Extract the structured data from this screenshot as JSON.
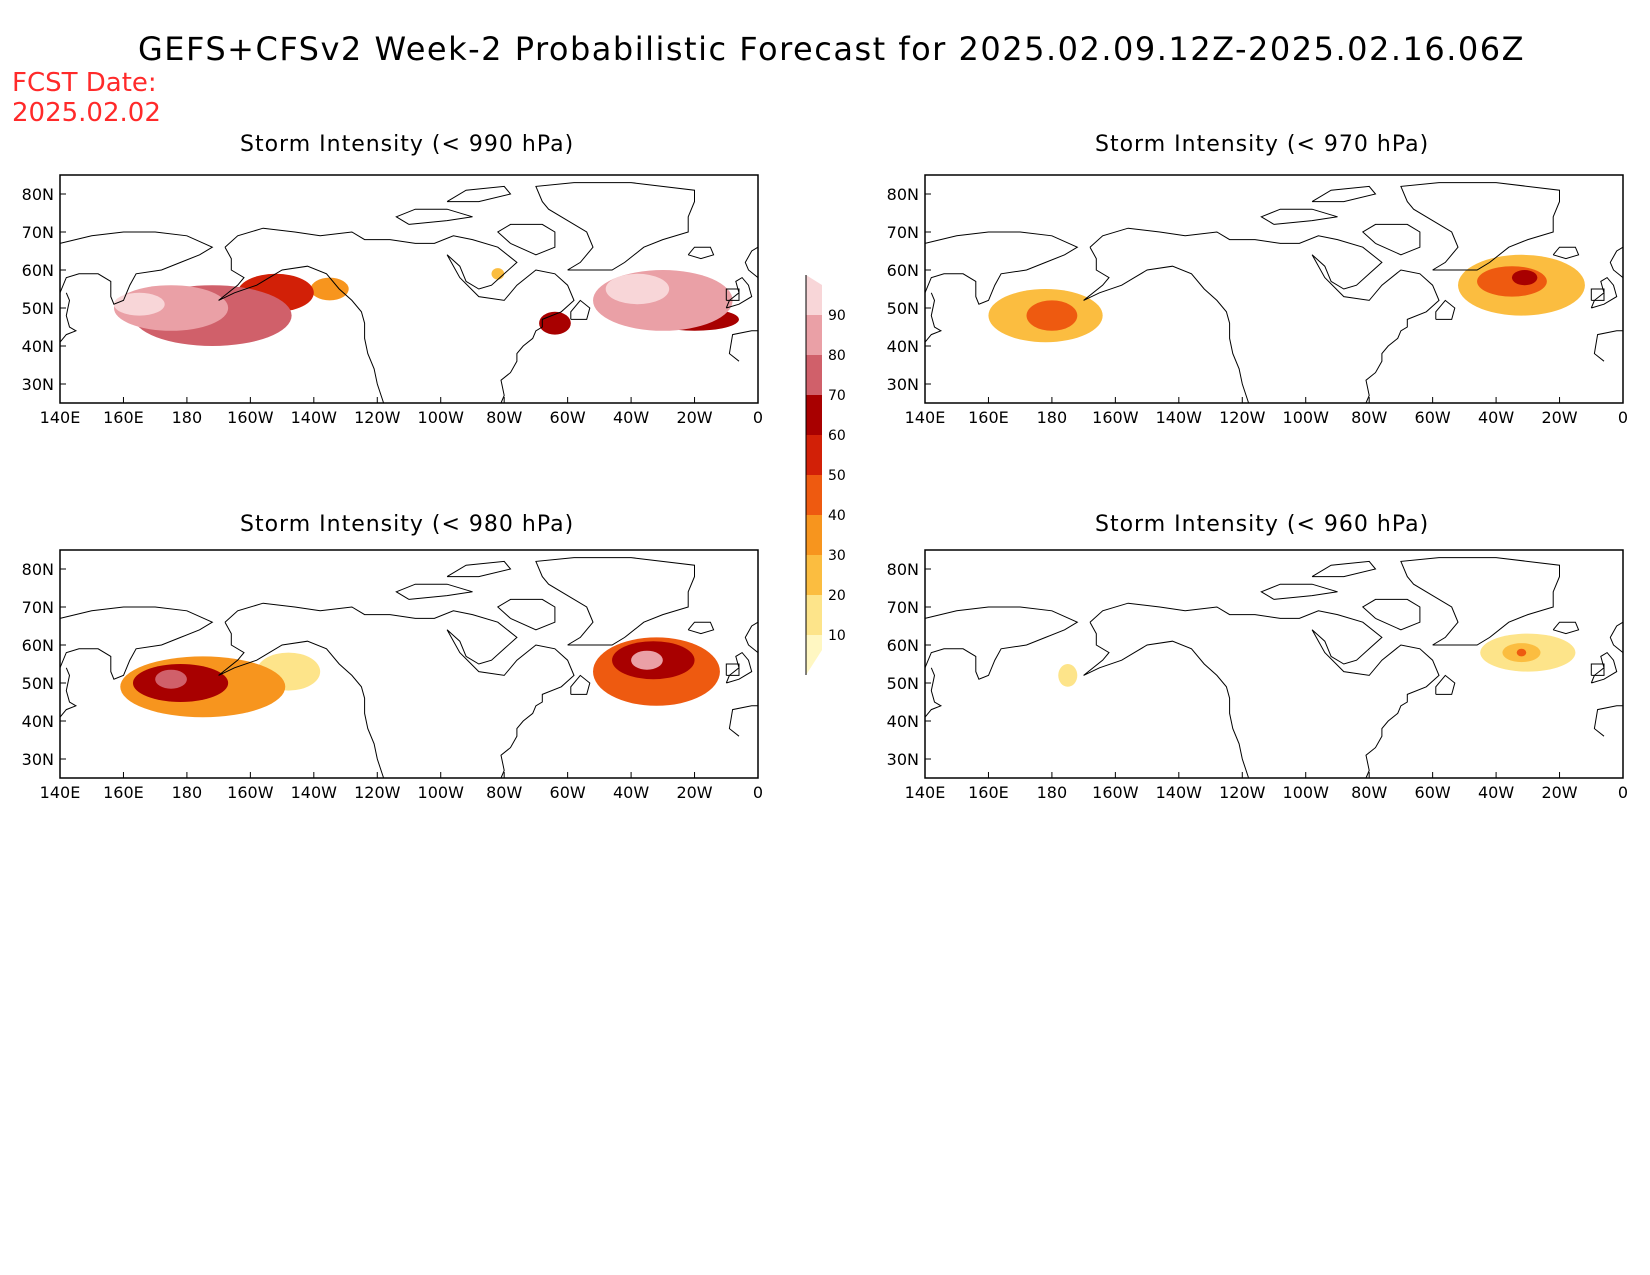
{
  "title": "GEFS+CFSv2 Week-2 Probabilistic Forecast for 2025.02.09.12Z-2025.02.16.06Z",
  "fcst_date_label": "FCST Date:",
  "fcst_date": "2025.02.02",
  "lon_ticks": [
    "140E",
    "160E",
    "180",
    "160W",
    "140W",
    "120W",
    "100W",
    "80W",
    "60W",
    "40W",
    "20W",
    "0"
  ],
  "lat_ticks": [
    "80N",
    "70N",
    "60N",
    "50N",
    "40N",
    "30N"
  ],
  "colorbar": {
    "levels": [
      "10",
      "20",
      "30",
      "40",
      "50",
      "60",
      "70",
      "80",
      "90"
    ],
    "colors": [
      "#fff7c2",
      "#fde48a",
      "#fbbd40",
      "#f7951e",
      "#ee5a10",
      "#d22007",
      "#a80000",
      "#d0606a",
      "#eaa0a6",
      "#f8d6d8"
    ]
  },
  "panels": [
    {
      "title": "Storm Intensity (< 990 hPa)",
      "blobs": [
        {
          "lon": 188,
          "lat": 48,
          "rlon": 25,
          "rlat": 8,
          "value": 70
        },
        {
          "lon": 175,
          "lat": 50,
          "rlon": 18,
          "rlat": 6,
          "value": 85
        },
        {
          "lon": 165,
          "lat": 51,
          "rlon": 8,
          "rlat": 3,
          "value": 95
        },
        {
          "lon": 208,
          "lat": 54,
          "rlon": 12,
          "rlat": 5,
          "value": 55
        },
        {
          "lon": 225,
          "lat": 55,
          "rlon": 6,
          "rlat": 3,
          "value": 35
        },
        {
          "lon": 330,
          "lat": 52,
          "rlon": 22,
          "rlat": 8,
          "value": 80
        },
        {
          "lon": 322,
          "lat": 55,
          "rlon": 10,
          "rlat": 4,
          "value": 92
        },
        {
          "lon": 340,
          "lat": 47,
          "rlon": 14,
          "rlat": 3,
          "value": 60
        },
        {
          "lon": 296,
          "lat": 46,
          "rlon": 5,
          "rlat": 3,
          "value": 65
        },
        {
          "lon": 278,
          "lat": 59,
          "rlon": 2,
          "rlat": 1.5,
          "value": 25
        }
      ]
    },
    {
      "title": "Storm Intensity (< 970 hPa)",
      "blobs": [
        {
          "lon": 178,
          "lat": 48,
          "rlon": 18,
          "rlat": 7,
          "value": 22
        },
        {
          "lon": 180,
          "lat": 48,
          "rlon": 8,
          "rlat": 4,
          "value": 40
        },
        {
          "lon": 328,
          "lat": 56,
          "rlon": 20,
          "rlat": 8,
          "value": 25
        },
        {
          "lon": 325,
          "lat": 57,
          "rlon": 11,
          "rlat": 4,
          "value": 48
        },
        {
          "lon": 329,
          "lat": 58,
          "rlon": 4,
          "rlat": 2,
          "value": 62
        }
      ]
    },
    {
      "title": "Storm Intensity (< 980 hPa)",
      "blobs": [
        {
          "lon": 185,
          "lat": 49,
          "rlon": 26,
          "rlat": 8,
          "value": 38
        },
        {
          "lon": 178,
          "lat": 50,
          "rlon": 15,
          "rlat": 5,
          "value": 62
        },
        {
          "lon": 175,
          "lat": 51,
          "rlon": 5,
          "rlat": 2.5,
          "value": 75
        },
        {
          "lon": 212,
          "lat": 53,
          "rlon": 10,
          "rlat": 5,
          "value": 18
        },
        {
          "lon": 328,
          "lat": 53,
          "rlon": 20,
          "rlat": 9,
          "value": 45
        },
        {
          "lon": 327,
          "lat": 56,
          "rlon": 13,
          "rlat": 5,
          "value": 65
        },
        {
          "lon": 325,
          "lat": 56,
          "rlon": 5,
          "rlat": 2.5,
          "value": 82
        }
      ]
    },
    {
      "title": "Storm Intensity (< 960 hPa)",
      "blobs": [
        {
          "lon": 185,
          "lat": 52,
          "rlon": 3,
          "rlat": 3,
          "value": 15
        },
        {
          "lon": 330,
          "lat": 58,
          "rlon": 15,
          "rlat": 5,
          "value": 18
        },
        {
          "lon": 328,
          "lat": 58,
          "rlon": 6,
          "rlat": 2.5,
          "value": 28
        },
        {
          "lon": 328,
          "lat": 58,
          "rlon": 1.5,
          "rlat": 1,
          "value": 42
        }
      ]
    }
  ]
}
